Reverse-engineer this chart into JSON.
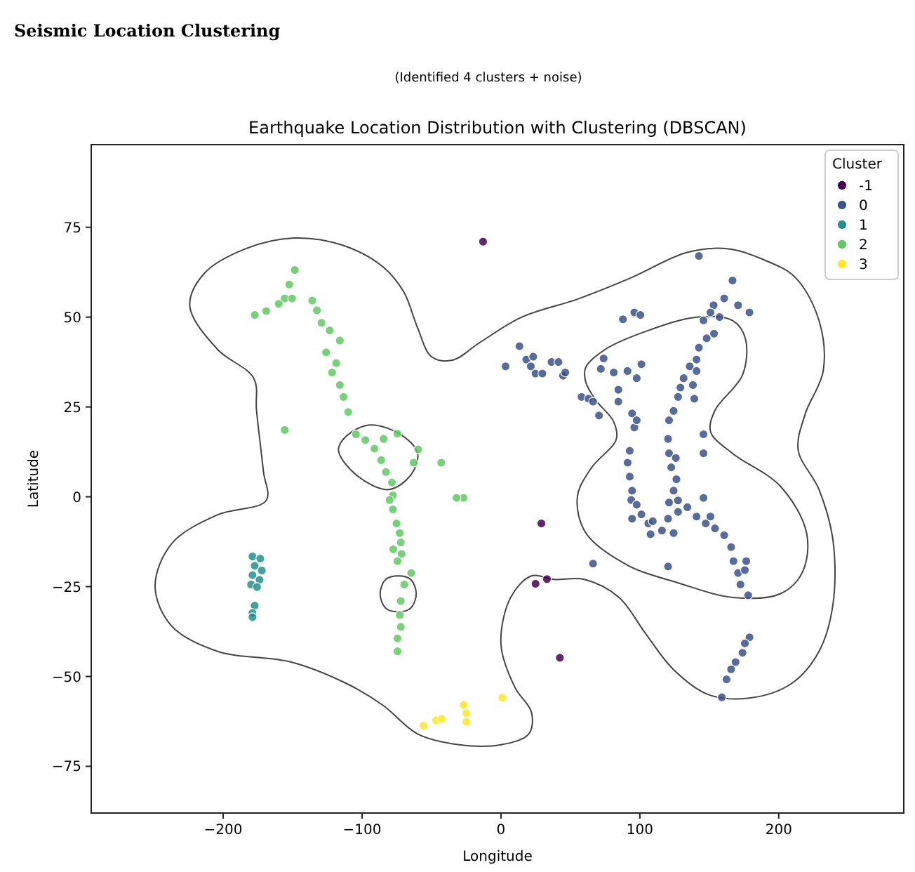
{
  "chart_data": {
    "type": "scatter",
    "title": "Earthquake Location Distribution with Clustering (DBSCAN)",
    "annotations": [
      "Seismic Location Clustering",
      "(Identified 4 clusters + noise)"
    ],
    "xlabel": "Longitude",
    "ylabel": "Latitude",
    "legend_title": "Cluster",
    "legend": "top right",
    "grid": false,
    "marker": "circle",
    "xlim": [
      -295,
      290
    ],
    "ylim": [
      -88,
      98
    ],
    "xticks": [
      {
        "value": -200,
        "label": "−200"
      },
      {
        "value": -100,
        "label": "−100"
      },
      0,
      100,
      200
    ],
    "yticks": [
      {
        "value": -75,
        "label": "−75"
      },
      {
        "value": -50,
        "label": "−50"
      },
      {
        "value": -25,
        "label": "−25"
      },
      0,
      25,
      50,
      75
    ],
    "series": [
      {
        "name": "-1",
        "color": "#440154",
        "x": [
          -12.9,
          29.1,
          24.9,
          33.1,
          42.4
        ],
        "values": [
          71,
          -7.4,
          -24.2,
          -22.9,
          -44.8
        ]
      },
      {
        "name": "0",
        "color": "#3b528b",
        "x": [
          142.5,
          166.7,
          160.7,
          153.1,
          170.7,
          178.9,
          157.4,
          150.8,
          145.8,
          153.4,
          148.1,
          142.5,
          140.8,
          135.9,
          140.8,
          131.5,
          129.2,
          138.2,
          127.5,
          139.2,
          124.3,
          121,
          145.8,
          120.3,
          121,
          125.9,
          145.8,
          122.6,
          126.3,
          124.3,
          121,
          127.5,
          145.8,
          120.3,
          127.5,
          134.2,
          140.8,
          115.9,
          124.3,
          147.4,
          150.8,
          154.1,
          160.7,
          165.7,
          167.4,
          176.6,
          170.7,
          175.6,
          172.4,
          178,
          92.7,
          91.2,
          92.7,
          94.4,
          93.8,
          97.7,
          101.1,
          106.1,
          107.7,
          109.3,
          94.4,
          94.4,
          96,
          97.7,
          84.5,
          84.5,
          97.7,
          101.1,
          91.1,
          81.2,
          73.9,
          71.9,
          58,
          63,
          66.3,
          70.6,
          66.3,
          120.3,
          87.8,
          96,
          100.4,
          13.3,
          3.3,
          18.2,
          23.2,
          21.5,
          24.9,
          29.8,
          36.4,
          41.4,
          44.7,
          46.3,
          178.9,
          175.6,
          173.9,
          168.9,
          165.7,
          162.4,
          159
        ],
        "values": [
          67,
          60.2,
          55.2,
          53.3,
          53.3,
          51.3,
          50,
          51.3,
          49.1,
          45.4,
          44.1,
          41.5,
          38.2,
          36.3,
          35,
          33,
          30.4,
          31.1,
          27.8,
          27.3,
          23.9,
          21.3,
          17.4,
          16.1,
          12.1,
          10.8,
          12.1,
          8.2,
          4.9,
          1.7,
          -1.6,
          -1,
          -0.3,
          -6.1,
          -4.2,
          -2.9,
          -5.5,
          -9.4,
          -10.1,
          -7.4,
          -5.5,
          -8.8,
          -10.7,
          -14,
          -17.9,
          -17.9,
          -21.2,
          -20.4,
          -24.4,
          -27.4,
          12.8,
          9.5,
          5.6,
          1.7,
          -0.9,
          -2.2,
          -4.9,
          -7.4,
          -10.4,
          -6.8,
          -6.1,
          23.2,
          19.3,
          21.3,
          26.5,
          29.8,
          33,
          36.9,
          35,
          34.6,
          38.5,
          35.6,
          27.8,
          27.3,
          26.5,
          22.6,
          -18.6,
          -19.4,
          49.4,
          51.3,
          50.6,
          41.9,
          36.3,
          38.2,
          39,
          36.3,
          34.3,
          34.3,
          37.5,
          37.5,
          33.7,
          34.6,
          -39.1,
          -40.8,
          -43.4,
          -46,
          -48,
          -50.8,
          -55.8
        ]
      },
      {
        "name": "1",
        "color": "#21918c",
        "x": [
          -178.9,
          -173.3,
          -177.3,
          -172.2,
          -178.9,
          -173.8,
          -179.9,
          -175.6,
          -177.3,
          -178.9,
          -178.9
        ],
        "values": [
          -16.6,
          -17.2,
          -19.2,
          -20.5,
          -21.8,
          -23.1,
          -24.4,
          -25.1,
          -30.3,
          -32.3,
          -33.5
        ]
      },
      {
        "name": "2",
        "color": "#5ec962",
        "x": [
          -148.4,
          -152.4,
          -155.7,
          -160,
          -169,
          -177.2,
          -150.4,
          -135.9,
          -132.5,
          -129.2,
          -123.3,
          -116,
          -125.9,
          -118.6,
          -121.6,
          -116,
          -113.3,
          -110,
          -155.7,
          -104.4,
          -97.7,
          -91.1,
          -86.2,
          -82.8,
          -78.5,
          -77.8,
          -80.2,
          -77.8,
          -75.2,
          -72.9,
          -72.1,
          -77.5,
          -71.6,
          -74.5,
          -64.6,
          -69.6,
          -72.1,
          -72.9,
          -72.1,
          -74.5,
          -74.5,
          -84.5,
          -74.6,
          -59.6,
          -62.9,
          -43,
          -27,
          -32
        ],
        "values": [
          63.1,
          59.1,
          55.2,
          53.7,
          51.7,
          50.6,
          55.2,
          54.6,
          51.9,
          48.4,
          46.3,
          43.5,
          40.2,
          37.2,
          34.6,
          31.1,
          27.8,
          23.6,
          18.6,
          17.4,
          15.8,
          13.4,
          10.2,
          6.9,
          4,
          0.4,
          -0.9,
          -3.5,
          -7.4,
          -10.1,
          -12.7,
          -14.6,
          -15.9,
          -17.9,
          -21.2,
          -24.4,
          -29,
          -32.9,
          -36.2,
          -39.4,
          -43,
          16.1,
          17.6,
          13.2,
          9.5,
          9.5,
          -0.3,
          -0.3
        ]
      },
      {
        "name": "3",
        "color": "#fde725",
        "x": [
          -55.7,
          -46.7,
          -42.7,
          -26.8,
          -24.9,
          -24.9,
          1
        ],
        "values": [
          -63.7,
          -62.2,
          -61.8,
          -57.9,
          -60.2,
          -62.6,
          -55.9
        ]
      }
    ]
  }
}
